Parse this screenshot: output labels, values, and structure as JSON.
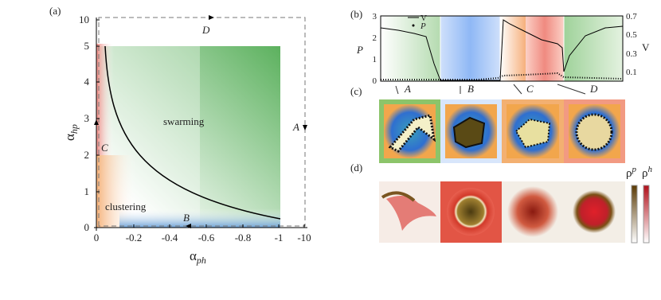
{
  "panel_a": {
    "label": "(a)",
    "y_axis": {
      "symbol": "α",
      "subscript": "hp"
    },
    "x_axis": {
      "symbol": "α",
      "subscript": "ph"
    },
    "yticks": [
      "0",
      "1",
      "2",
      "3",
      "4",
      "5",
      "10"
    ],
    "xticks": [
      "0",
      "-0.2",
      "-0.4",
      "-0.6",
      "-0.8",
      "-1",
      "-10"
    ],
    "regions": [
      "swarming",
      "clustering"
    ],
    "path_labels": [
      "A",
      "B",
      "C",
      "D"
    ]
  },
  "panel_b": {
    "label": "(b)",
    "left_axis": "P",
    "right_axis": "V",
    "left_ticks": [
      "3",
      "2",
      "1",
      "0"
    ],
    "right_ticks": [
      "0.7",
      "0.5",
      "0.3",
      "0.1"
    ],
    "legend": [
      "V",
      "P"
    ],
    "markers": [
      "A",
      "B",
      "C",
      "D"
    ]
  },
  "panel_c": {
    "label": "(c)"
  },
  "panel_d": {
    "label": "(d)",
    "colorbars": [
      {
        "symbol": "ρ",
        "superscript": "p"
      },
      {
        "symbol": "ρ",
        "superscript": "h"
      }
    ]
  }
}
